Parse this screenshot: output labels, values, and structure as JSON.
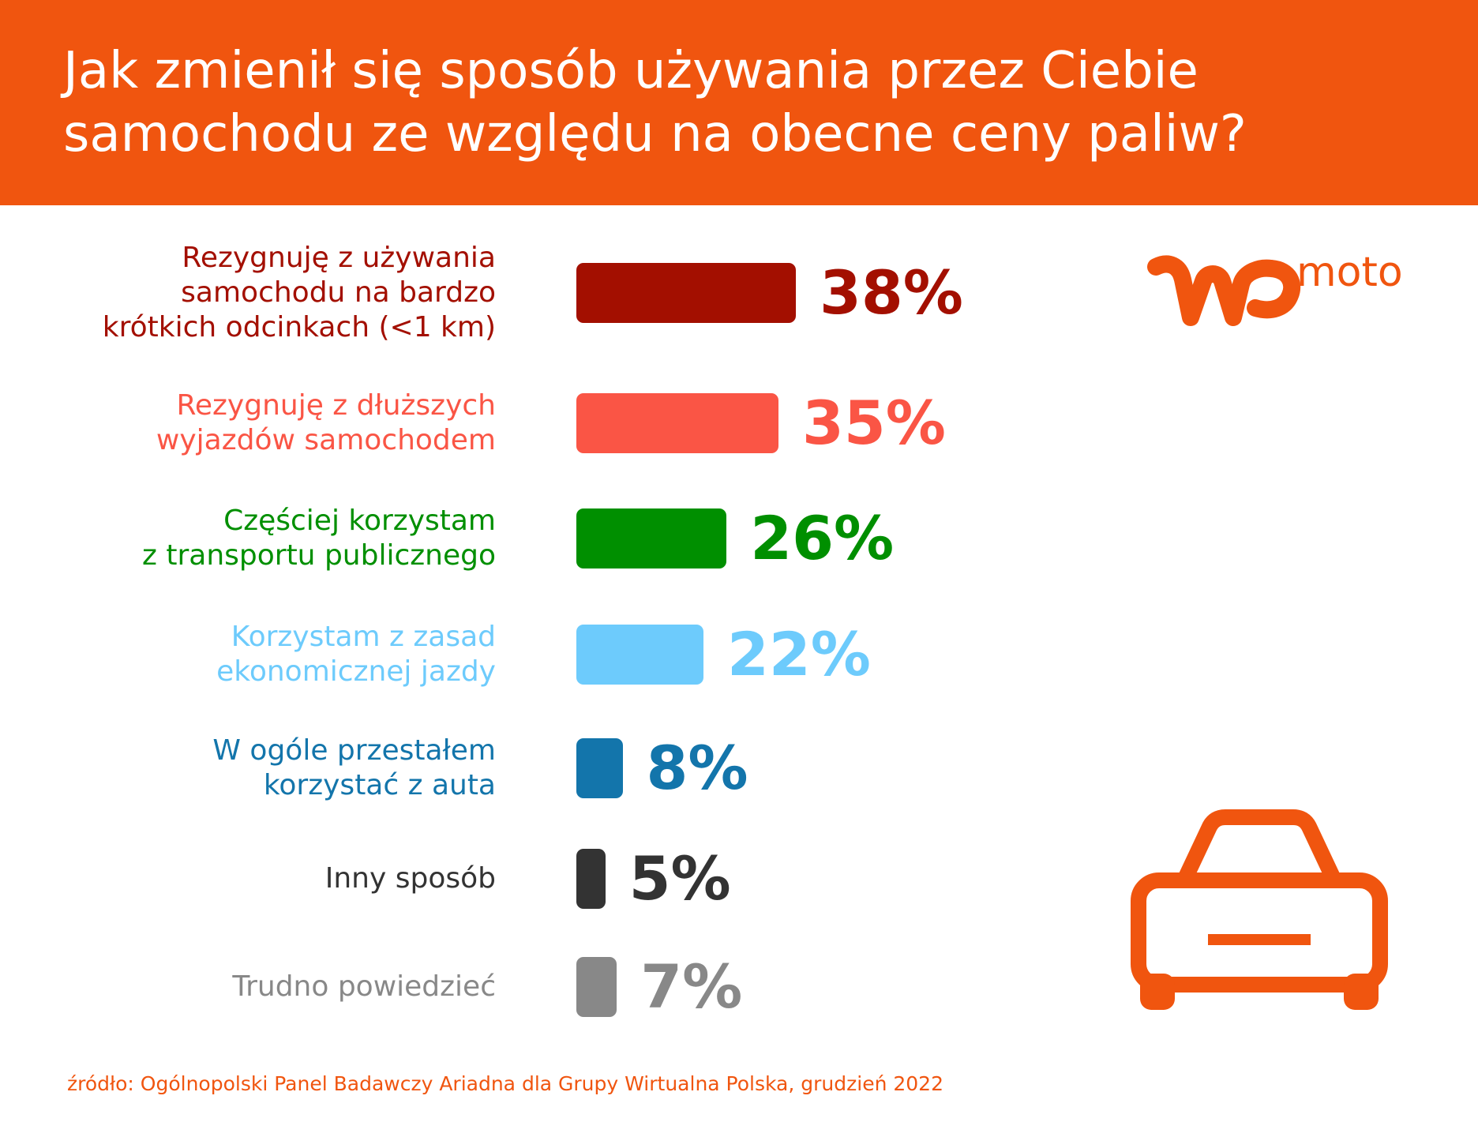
{
  "header": {
    "title_line1": "Jak zmienił się sposób używania przez Ciebie",
    "title_line2": "samochodu ze względu na obecne ceny paliw?",
    "bg_color": "#f0550f"
  },
  "logo": {
    "brand": "WP",
    "text": "moto",
    "color": "#f0550f"
  },
  "chart_data": {
    "type": "bar",
    "orientation": "horizontal",
    "categories": [
      "Rezygnuję z używania samochodu na bardzo krótkich odcinkach (<1 km)",
      "Rezygnuję z dłuższych wyjazdów samochodem",
      "Częściej korzystam z transportu publicznego",
      "Korzystam z zasad ekonomicznej jazdy",
      "W ogóle przestałem korzystać z auta",
      "Inny sposób",
      "Trudno powiedzieć"
    ],
    "values": [
      38,
      35,
      26,
      22,
      8,
      5,
      7
    ],
    "unit": "%",
    "value_labels": [
      "38%",
      "35%",
      "26%",
      "22%",
      "8%",
      "5%",
      "7%"
    ],
    "colors": [
      "#a30f00",
      "#fa5545",
      "#008f00",
      "#6dcbfc",
      "#1375ab",
      "#333333",
      "#888888"
    ],
    "label_lines": [
      [
        "Rezygnuję z używania",
        "samochodu na bardzo",
        "krótkich odcinkach (<1 km)"
      ],
      [
        "Rezygnuję z dłuższych",
        "wyjazdów samochodem"
      ],
      [
        "Częściej korzystam",
        "z transportu publicznego"
      ],
      [
        "Korzystam z zasad",
        "ekonomicznej jazdy"
      ],
      [
        "W ogóle przestałem",
        "korzystać z auta"
      ],
      [
        "Inny sposób"
      ],
      [
        "Trudno powiedzieć"
      ]
    ],
    "xlim": [
      0,
      38
    ],
    "grid": false,
    "legend": "none"
  },
  "illustration": {
    "icon": "car-icon",
    "color": "#f0550f"
  },
  "source": "źródło: Ogólnopolski Panel Badawczy Ariadna dla Grupy Wirtualna Polska, grudzień 2022"
}
